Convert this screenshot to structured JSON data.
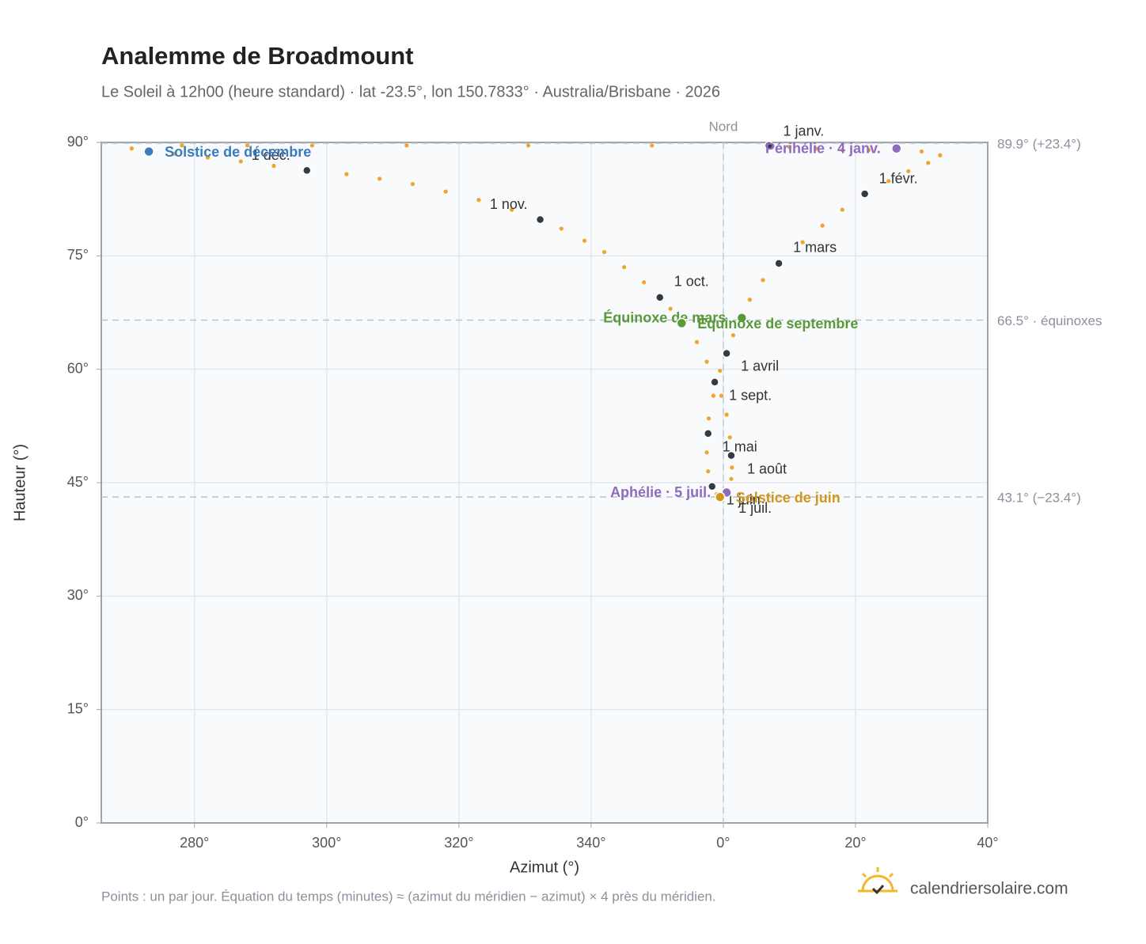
{
  "chart_data": {
    "type": "scatter",
    "title": "Analemme de Broadmount",
    "subtitle": "Le Soleil à 12h00 (heure standard) · lat -23.5°, lon 150.7833° · Australia/Brisbane · 2026",
    "x_label": "Azimut (°)",
    "y_label": "Hauteur (°)",
    "xlim": [
      -94.1,
      40
    ],
    "ylim": [
      0,
      90
    ],
    "xticks": [
      {
        "value": -80,
        "label": "280°"
      },
      {
        "value": -60,
        "label": "300°"
      },
      {
        "value": -40,
        "label": "320°"
      },
      {
        "value": -20,
        "label": "340°"
      },
      {
        "value": 0,
        "label": "0°"
      },
      {
        "value": 20,
        "label": "20°"
      },
      {
        "value": 40,
        "label": "40°"
      }
    ],
    "yticks": [
      {
        "value": 0,
        "label": "0°"
      },
      {
        "value": 15,
        "label": "15°"
      },
      {
        "value": 30,
        "label": "30°"
      },
      {
        "value": 45,
        "label": "45°"
      },
      {
        "value": 60,
        "label": "60°"
      },
      {
        "value": 75,
        "label": "75°"
      },
      {
        "value": 90,
        "label": "90°"
      }
    ],
    "grid": true,
    "series": [
      {
        "color": "#f2a42a",
        "x": [
          6.9,
          10,
          14,
          18,
          22,
          26,
          30,
          32.8,
          31,
          28,
          25,
          21.4,
          18,
          15,
          12,
          8.4,
          6,
          4,
          2.8,
          1.5,
          0.5,
          -0.5,
          -1.5,
          -2.2,
          -2.3,
          -2.5,
          -2.3,
          -1.7,
          -1.0,
          -0.5,
          0,
          0.7,
          1.2,
          1.3,
          1.2,
          1.0,
          0.5,
          -0.3,
          -1.3,
          -2.5,
          -4,
          -6.3,
          -8,
          -9.6,
          -12,
          -15,
          -18,
          -21,
          -24.5,
          -27.7,
          -32,
          -37,
          -42,
          -47,
          -52,
          -57,
          -63,
          -68,
          -73,
          -78,
          -83,
          -86.9,
          -89.5,
          -81.9,
          -72.0,
          -62.2,
          -47.9,
          -29.5,
          -10.8
        ],
        "y": [
          89.6,
          89.4,
          89.2,
          89.0,
          89.0,
          88.9,
          88.8,
          88.3,
          87.3,
          86.2,
          84.9,
          83.2,
          81.1,
          79.0,
          76.8,
          74.0,
          71.8,
          69.2,
          66.8,
          64.5,
          62.1,
          59.8,
          56.5,
          53.5,
          51.5,
          49,
          46.5,
          44.5,
          43.5,
          43.1,
          43.2,
          44.0,
          45.5,
          47,
          48.6,
          51,
          54,
          56.5,
          58.3,
          61,
          63.6,
          66.1,
          68,
          69.5,
          71.5,
          73.5,
          75.5,
          77,
          78.6,
          79.8,
          81.1,
          82.4,
          83.5,
          84.5,
          85.2,
          85.8,
          86.3,
          86.9,
          87.5,
          88.0,
          88.5,
          88.8,
          89.2,
          89.6,
          89.6,
          89.6,
          89.6,
          89.6,
          89.6
        ]
      }
    ],
    "months": [
      {
        "label": "1 janv.",
        "x": 6.9,
        "y": 89.6
      },
      {
        "label": "1 févr.",
        "x": 21.4,
        "y": 83.2
      },
      {
        "label": "1 mars",
        "x": 8.4,
        "y": 74.0
      },
      {
        "label": "1 avril",
        "x": 0.5,
        "y": 62.1
      },
      {
        "label": "1 mai",
        "x": -2.3,
        "y": 51.5
      },
      {
        "label": "1 juin",
        "x": -1.7,
        "y": 44.5
      },
      {
        "label": "1 juil.",
        "x": -0.1,
        "y": 43.4
      },
      {
        "label": "1 août",
        "x": 1.2,
        "y": 48.6
      },
      {
        "label": "1 sept.",
        "x": -1.3,
        "y": 58.3
      },
      {
        "label": "1 oct.",
        "x": -9.6,
        "y": 69.5
      },
      {
        "label": "1 nov.",
        "x": -27.7,
        "y": 79.8
      },
      {
        "label": "1 déc.",
        "x": -63.0,
        "y": 86.3
      }
    ],
    "events": [
      {
        "label": "Solstice de décembre",
        "x": -86.9,
        "y": 88.8,
        "color": "#3a7abf"
      },
      {
        "label": "Équinoxe de mars",
        "x": 2.8,
        "y": 66.8,
        "color": "#5a9a3a"
      },
      {
        "label": "Équinoxe de septembre",
        "x": -6.3,
        "y": 66.1,
        "color": "#5a9a3a"
      },
      {
        "label": "Périhélie · 4 janv.",
        "x": 26.2,
        "y": 89.2,
        "color": "#8e6bbf"
      },
      {
        "label": "Aphélie · 5 juil.",
        "x": 0.5,
        "y": 43.7,
        "color": "#8e6bbf"
      },
      {
        "label": "Solstice de juin",
        "x": -0.5,
        "y": 43.1,
        "color": "#d4961c"
      }
    ],
    "h_lines": [
      {
        "value": 89.9,
        "label": "89.9° (+23.4°)"
      },
      {
        "value": 66.5,
        "label": "66.5° · équinoxes"
      },
      {
        "value": 43.1,
        "label": "43.1° (−23.4°)"
      }
    ],
    "v_line": {
      "value": 0,
      "label": "Nord"
    },
    "note": "Points : un par jour. Équation du temps (minutes) ≈ (azimut du méridien − azimut) × 4 près du méridien.",
    "brand": "calendriersolaire.com"
  }
}
